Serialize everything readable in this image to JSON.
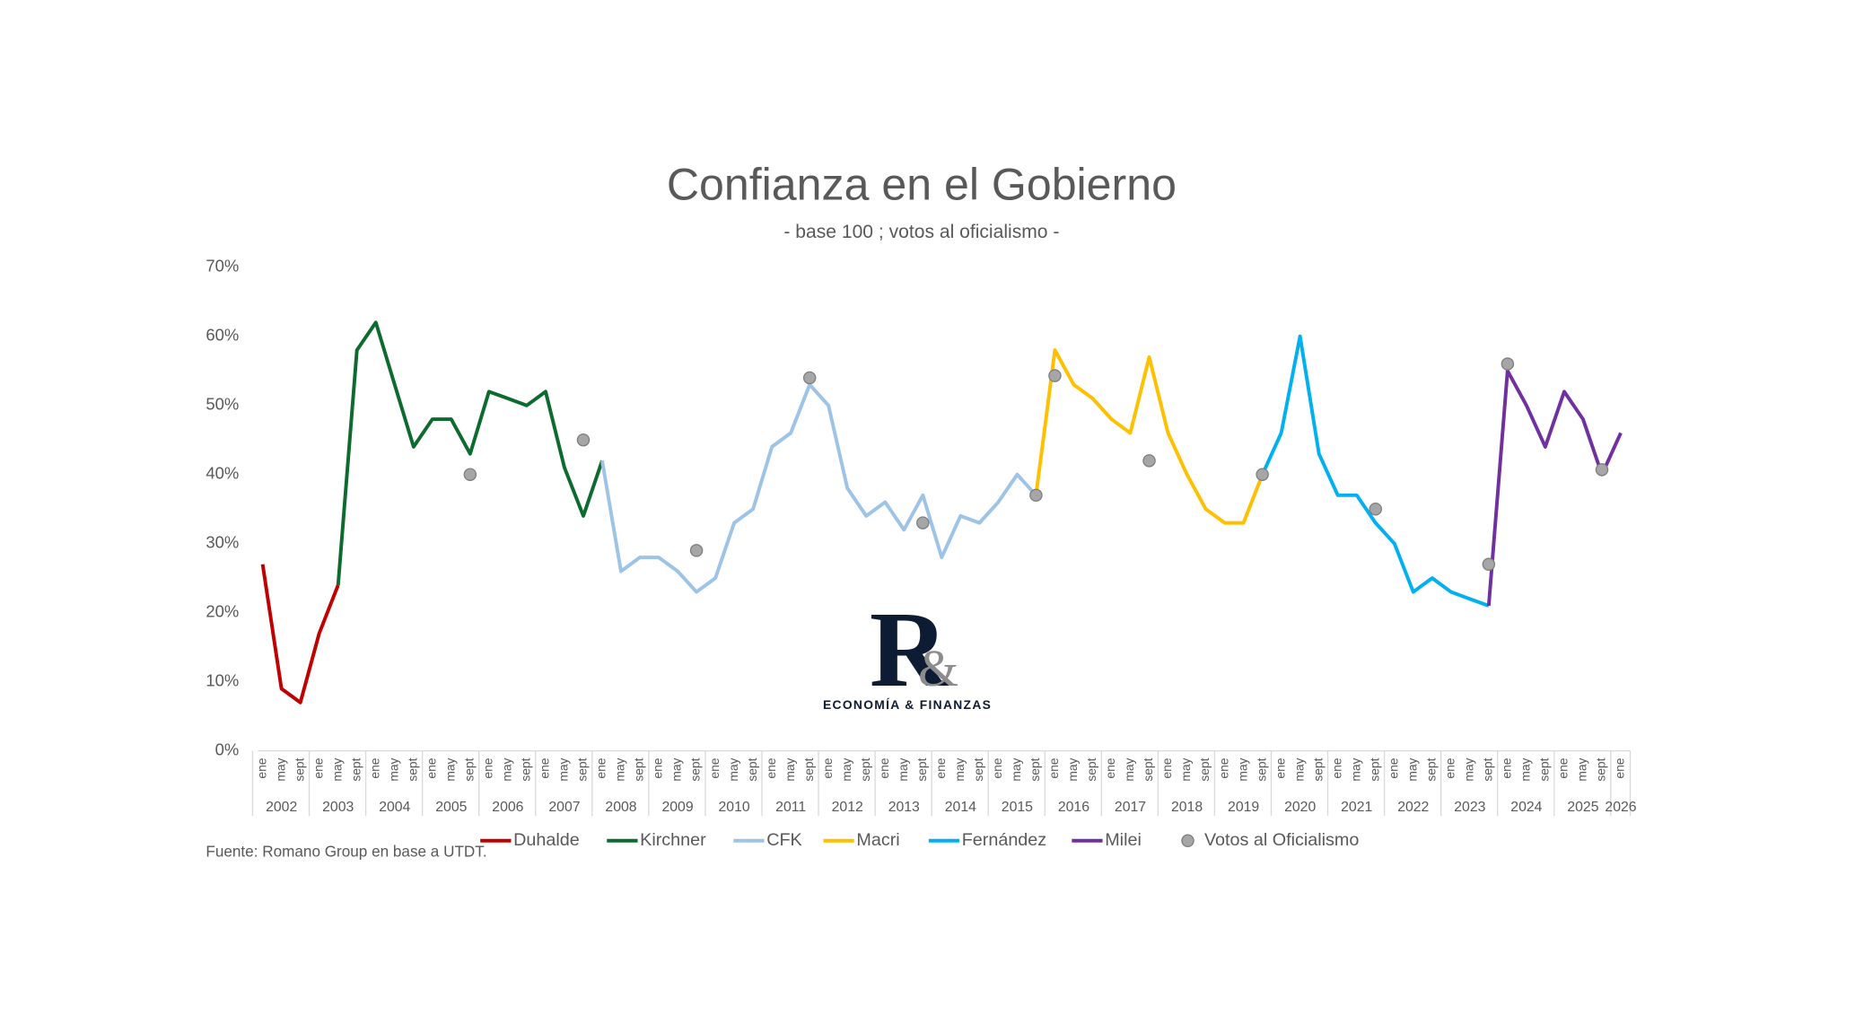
{
  "chart_data": {
    "type": "line",
    "title": "Confianza en el Gobierno",
    "subtitle": "- base 100 ; votos al oficialismo -",
    "source": "Fuente: Romano Group en base a UTDT.",
    "logo": {
      "letter": "R",
      "amp": "&",
      "text": "ECONOMÍA & FINANZAS"
    },
    "categories": [
      "ene",
      "may",
      "sept",
      "ene",
      "may",
      "sept",
      "ene",
      "may",
      "sept",
      "ene",
      "may",
      "sept",
      "ene",
      "may",
      "sept",
      "ene",
      "may",
      "sept",
      "ene",
      "may",
      "sept",
      "ene",
      "may",
      "sept",
      "ene",
      "may",
      "sept",
      "ene",
      "may",
      "sept",
      "ene",
      "may",
      "sept",
      "ene",
      "may",
      "sept",
      "ene",
      "may",
      "sept",
      "ene",
      "may",
      "sept",
      "ene",
      "may",
      "sept",
      "ene",
      "may",
      "sept",
      "ene",
      "may",
      "sept",
      "ene",
      "may",
      "sept",
      "ene",
      "may",
      "sept",
      "ene",
      "may",
      "sept",
      "ene",
      "may",
      "sept",
      "ene",
      "may",
      "sept",
      "ene",
      "may",
      "sept",
      "ene",
      "may",
      "sept",
      "ene"
    ],
    "years": [
      "2002",
      "2003",
      "2004",
      "2005",
      "2006",
      "2007",
      "2008",
      "2009",
      "2010",
      "2011",
      "2012",
      "2013",
      "2014",
      "2015",
      "2016",
      "2017",
      "2018",
      "2019",
      "2020",
      "2021",
      "2022",
      "2023",
      "2024",
      "2025",
      "2026"
    ],
    "ylim": [
      0,
      70
    ],
    "yticks": [
      {
        "value": 0,
        "label": "0%"
      },
      {
        "value": 10,
        "label": "10%"
      },
      {
        "value": 20,
        "label": "20%"
      },
      {
        "value": 30,
        "label": "30%"
      },
      {
        "value": 40,
        "label": "40%"
      },
      {
        "value": 50,
        "label": "50%"
      },
      {
        "value": 60,
        "label": "60%"
      },
      {
        "value": 70,
        "label": "70%"
      }
    ],
    "grid": false,
    "series": [
      {
        "name": "Duhalde",
        "color": "#c00000",
        "values": [
          27,
          9,
          7,
          17,
          24,
          null,
          null,
          null,
          null,
          null,
          null,
          null,
          null,
          null,
          null,
          null,
          null,
          null,
          null,
          null,
          null,
          null,
          null,
          null,
          null,
          null,
          null,
          null,
          null,
          null,
          null,
          null,
          null,
          null,
          null,
          null,
          null,
          null,
          null,
          null,
          null,
          null,
          null,
          null,
          null,
          null,
          null,
          null,
          null,
          null,
          null,
          null,
          null,
          null,
          null,
          null,
          null,
          null,
          null,
          null,
          null,
          null,
          null,
          null,
          null,
          null,
          null,
          null,
          null,
          null,
          null,
          null,
          null
        ]
      },
      {
        "name": "Kirchner",
        "color": "#0e6b2f",
        "values": [
          null,
          null,
          null,
          null,
          24,
          58,
          62,
          53,
          44,
          48,
          48,
          43,
          52,
          51,
          50,
          52,
          41,
          34,
          42,
          null,
          null,
          null,
          null,
          null,
          null,
          null,
          null,
          null,
          null,
          null,
          null,
          null,
          null,
          null,
          null,
          null,
          null,
          null,
          null,
          null,
          null,
          null,
          null,
          null,
          null,
          null,
          null,
          null,
          null,
          null,
          null,
          null,
          null,
          null,
          null,
          null,
          null,
          null,
          null,
          null,
          null,
          null,
          null,
          null,
          null,
          null,
          null,
          null,
          null,
          null,
          null,
          null,
          null
        ]
      },
      {
        "name": "CFK",
        "color": "#9dc3e6",
        "values": [
          null,
          null,
          null,
          null,
          null,
          null,
          null,
          null,
          null,
          null,
          null,
          null,
          null,
          null,
          null,
          null,
          null,
          null,
          42,
          26,
          28,
          28,
          26,
          23,
          25,
          33,
          35,
          44,
          46,
          53,
          50,
          38,
          34,
          36,
          32,
          37,
          28,
          34,
          33,
          36,
          40,
          37,
          null,
          null,
          null,
          null,
          null,
          null,
          null,
          null,
          null,
          null,
          null,
          null,
          null,
          null,
          null,
          null,
          null,
          null,
          null,
          null,
          null,
          null,
          null,
          null,
          null,
          null,
          null,
          null,
          null,
          null,
          null
        ]
      },
      {
        "name": "Macri",
        "color": "#ffc000",
        "values": [
          null,
          null,
          null,
          null,
          null,
          null,
          null,
          null,
          null,
          null,
          null,
          null,
          null,
          null,
          null,
          null,
          null,
          null,
          null,
          null,
          null,
          null,
          null,
          null,
          null,
          null,
          null,
          null,
          null,
          null,
          null,
          null,
          null,
          null,
          null,
          null,
          null,
          null,
          null,
          null,
          null,
          37,
          58,
          53,
          51,
          48,
          46,
          57,
          46,
          40,
          35,
          33,
          33,
          40,
          null,
          null,
          null,
          null,
          null,
          null,
          null,
          null,
          null,
          null,
          null,
          null,
          null,
          null,
          null,
          null,
          null,
          null,
          null
        ]
      },
      {
        "name": "Fernández",
        "color": "#00b0f0",
        "values": [
          null,
          null,
          null,
          null,
          null,
          null,
          null,
          null,
          null,
          null,
          null,
          null,
          null,
          null,
          null,
          null,
          null,
          null,
          null,
          null,
          null,
          null,
          null,
          null,
          null,
          null,
          null,
          null,
          null,
          null,
          null,
          null,
          null,
          null,
          null,
          null,
          null,
          null,
          null,
          null,
          null,
          null,
          null,
          null,
          null,
          null,
          null,
          null,
          null,
          null,
          null,
          null,
          null,
          40,
          46,
          60,
          43,
          37,
          37,
          33,
          30,
          23,
          25,
          23,
          22,
          21,
          null,
          null,
          null,
          null,
          null,
          null,
          null
        ]
      },
      {
        "name": "Milei",
        "color": "#7030a0",
        "values": [
          null,
          null,
          null,
          null,
          null,
          null,
          null,
          null,
          null,
          null,
          null,
          null,
          null,
          null,
          null,
          null,
          null,
          null,
          null,
          null,
          null,
          null,
          null,
          null,
          null,
          null,
          null,
          null,
          null,
          null,
          null,
          null,
          null,
          null,
          null,
          null,
          null,
          null,
          null,
          null,
          null,
          null,
          null,
          null,
          null,
          null,
          null,
          null,
          null,
          null,
          null,
          null,
          null,
          null,
          null,
          null,
          null,
          null,
          null,
          null,
          null,
          null,
          null,
          null,
          null,
          21,
          55,
          50,
          44,
          52,
          48,
          40,
          46
        ]
      },
      {
        "name": "Votos al Oficialismo",
        "color": "#a6a6a6",
        "style": "marker",
        "values": [
          null,
          null,
          null,
          null,
          null,
          null,
          null,
          null,
          null,
          null,
          null,
          40,
          null,
          null,
          null,
          null,
          null,
          45,
          null,
          null,
          null,
          null,
          null,
          29,
          null,
          null,
          null,
          null,
          null,
          54,
          null,
          null,
          null,
          null,
          null,
          33,
          null,
          null,
          null,
          null,
          null,
          37,
          54.3,
          null,
          null,
          null,
          null,
          42,
          null,
          null,
          null,
          null,
          null,
          40,
          null,
          null,
          null,
          null,
          null,
          35,
          null,
          null,
          null,
          null,
          null,
          27,
          56,
          null,
          null,
          null,
          null,
          40.7,
          null
        ]
      }
    ]
  }
}
